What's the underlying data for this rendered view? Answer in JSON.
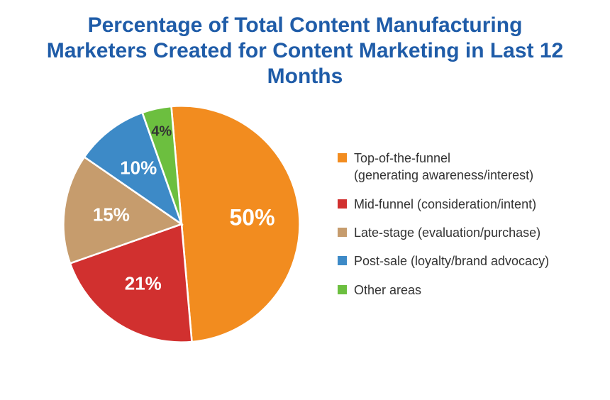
{
  "chart": {
    "type": "pie",
    "title": "Percentage of Total Content Manufacturing Marketers Created for Content Marketing in Last 12 Months",
    "title_color": "#1f5ca8",
    "title_fontsize": 30,
    "background_color": "#ffffff",
    "legend_fontsize": 18,
    "legend_text_color": "#333333",
    "label_fontsize_large": 32,
    "label_fontsize_medium": 26,
    "label_fontsize_small": 20,
    "label_color": "#ffffff",
    "start_angle_deg": -95,
    "slices": [
      {
        "key": "top_funnel",
        "value": 50,
        "label": "50%",
        "color": "#f28c1f",
        "legend": "Top-of-the-funnel\n(generating awareness/interest)",
        "label_size": "large"
      },
      {
        "key": "mid_funnel",
        "value": 21,
        "label": "21%",
        "color": "#d1302f",
        "legend": "Mid-funnel (consideration/intent)",
        "label_size": "medium"
      },
      {
        "key": "late_stage",
        "value": 15,
        "label": "15%",
        "color": "#c69c6d",
        "legend": "Late-stage (evaluation/purchase)",
        "label_size": "medium"
      },
      {
        "key": "post_sale",
        "value": 10,
        "label": "10%",
        "color": "#3d8ac7",
        "legend": "Post-sale (loyalty/brand advocacy)",
        "label_size": "medium"
      },
      {
        "key": "other",
        "value": 4,
        "label": "4%",
        "color": "#6cbf3f",
        "legend": "Other areas",
        "label_size": "small"
      }
    ]
  }
}
